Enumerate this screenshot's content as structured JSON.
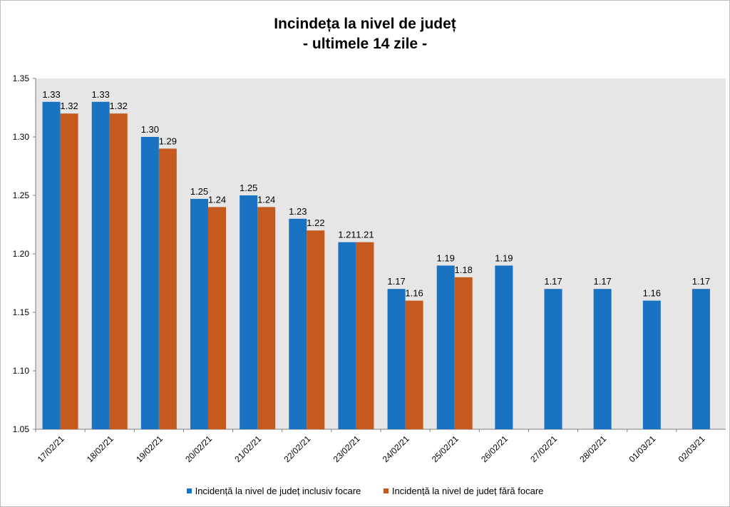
{
  "title_line1": "Incindeța la nivel de județ",
  "title_line2": "- ultimele 14 zile -",
  "colors": {
    "plot_bg": "#e6e6e6",
    "series1": "#1a73c2",
    "series2": "#c55a1e",
    "axis": "#7f7f7f"
  },
  "chart_data": {
    "type": "bar",
    "categories": [
      "17/02/21",
      "18/02/21",
      "19/02/21",
      "20/02/21",
      "21/02/21",
      "22/02/21",
      "23/02/21",
      "24/02/21",
      "25/02/21",
      "26/02/21",
      "27/02/21",
      "28/02/21",
      "01/03/21",
      "02/03/21"
    ],
    "series": [
      {
        "name": "Incidență la nivel de județ inclusiv focare",
        "values": [
          1.33,
          1.33,
          1.3,
          1.247,
          1.25,
          1.23,
          1.21,
          1.17,
          1.19,
          1.19,
          1.17,
          1.17,
          1.16,
          1.17
        ],
        "labels": [
          "1.33",
          "1.33",
          "1.30",
          "1.25",
          "1.25",
          "1.23",
          "1.21",
          "1.17",
          "1.19",
          "1.19",
          "1.17",
          "1.17",
          "1.16",
          "1.17"
        ]
      },
      {
        "name": "Incidență la nivel de județ fără focare",
        "values": [
          1.32,
          1.32,
          1.29,
          1.24,
          1.24,
          1.22,
          1.21,
          1.16,
          1.18,
          null,
          null,
          null,
          null,
          null
        ],
        "labels": [
          "1.32",
          "1.32",
          "1.29",
          "1.24",
          "1.24",
          "1.22",
          "1.21",
          "1.16",
          "1.18",
          "",
          "",
          "",
          "",
          ""
        ]
      }
    ],
    "ylim": [
      1.05,
      1.35
    ],
    "yticks": [
      "1.05",
      "1.10",
      "1.15",
      "1.20",
      "1.25",
      "1.30",
      "1.35"
    ],
    "grid": false,
    "legend_position": "bottom"
  }
}
